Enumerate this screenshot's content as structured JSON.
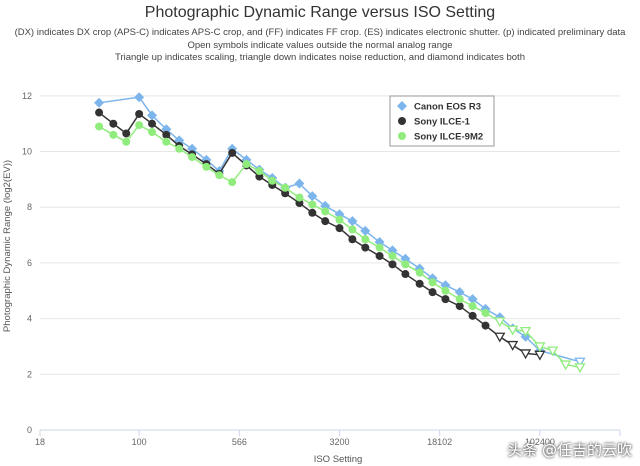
{
  "chart_data": {
    "type": "line",
    "title": "Photographic Dynamic Range versus ISO Setting",
    "subtitle_lines": [
      "(DX) indicates DX crop (APS-C) indicates APS-C crop, and (FF) indicates FF crop. (ES) indicates electronic shutter. (p) indicated preliminary data",
      "Open symbols indicate values outside the normal analog range",
      "Triangle up indicates scaling, triangle down indicates noise reduction, and diamond indicates both"
    ],
    "xlabel": "ISO Setting",
    "ylabel": "Photographic Dynamic Range (log2(EV))",
    "xscale": "log2",
    "xlim": [
      18,
      409600
    ],
    "ylim": [
      0,
      13
    ],
    "x_ticks": [
      18,
      100,
      566,
      3200,
      18102,
      102400
    ],
    "x_tick_labels": [
      "18",
      "100",
      "566",
      "3200",
      "18102",
      "102400"
    ],
    "y_ticks": [
      0,
      2,
      4,
      6,
      8,
      10,
      12
    ],
    "grid": true,
    "legend_position": "top-right",
    "series": [
      {
        "name": "Canon EOS R3",
        "color": "#7cb5ec",
        "marker": "diamond",
        "x": [
          50,
          100,
          125,
          160,
          200,
          250,
          320,
          400,
          500,
          640,
          800,
          1000,
          1250,
          1600,
          2000,
          2500,
          3200,
          4000,
          5000,
          6400,
          8000,
          10000,
          12800,
          16000,
          20000,
          25600,
          32000,
          40000,
          51200,
          64000,
          80000,
          102400,
          204800
        ],
        "y": [
          11.75,
          11.95,
          11.3,
          10.8,
          10.4,
          10.1,
          9.7,
          9.3,
          10.1,
          9.7,
          9.35,
          9.05,
          8.7,
          8.85,
          8.4,
          8.05,
          7.75,
          7.5,
          7.15,
          6.75,
          6.45,
          6.15,
          5.8,
          5.45,
          5.2,
          4.95,
          4.7,
          4.35,
          4.05,
          3.65,
          3.35,
          2.85,
          2.45
        ],
        "open_from_index": 32
      },
      {
        "name": "Sony ILCE-1",
        "color": "#333333",
        "marker": "circle",
        "x": [
          50,
          64,
          80,
          100,
          125,
          160,
          200,
          250,
          320,
          400,
          500,
          640,
          800,
          1000,
          1250,
          1600,
          2000,
          2500,
          3200,
          4000,
          5000,
          6400,
          8000,
          10000,
          12800,
          16000,
          20000,
          25600,
          32000,
          40000,
          51200,
          64000,
          80000,
          102400
        ],
        "y": [
          11.4,
          11.0,
          10.65,
          11.35,
          11.0,
          10.6,
          10.2,
          9.9,
          9.55,
          9.2,
          9.95,
          9.5,
          9.1,
          8.8,
          8.5,
          8.15,
          7.8,
          7.5,
          7.25,
          6.85,
          6.55,
          6.25,
          5.95,
          5.6,
          5.25,
          4.95,
          4.7,
          4.45,
          4.1,
          3.75,
          3.35,
          3.05,
          2.75,
          2.7
        ],
        "open_from_index": 30
      },
      {
        "name": "Sony ILCE-9M2",
        "color": "#90ed7d",
        "marker": "circle",
        "x": [
          50,
          64,
          80,
          100,
          125,
          160,
          200,
          250,
          320,
          400,
          500,
          640,
          800,
          1000,
          1250,
          1600,
          2000,
          2500,
          3200,
          4000,
          5000,
          6400,
          8000,
          10000,
          12800,
          16000,
          20000,
          25600,
          32000,
          40000,
          51200,
          64000,
          80000,
          102400,
          128000,
          160000,
          204800
        ],
        "y": [
          10.9,
          10.6,
          10.35,
          10.95,
          10.7,
          10.35,
          10.1,
          9.8,
          9.45,
          9.15,
          8.9,
          9.55,
          9.3,
          8.95,
          8.7,
          8.35,
          8.1,
          7.85,
          7.55,
          7.2,
          6.85,
          6.55,
          6.25,
          5.95,
          5.65,
          5.3,
          5.0,
          4.7,
          4.45,
          4.2,
          3.9,
          3.6,
          3.55,
          3.0,
          2.85,
          2.35,
          2.25
        ],
        "open_from_index": 30
      }
    ]
  },
  "watermark": "头条 @任吉的云吹"
}
